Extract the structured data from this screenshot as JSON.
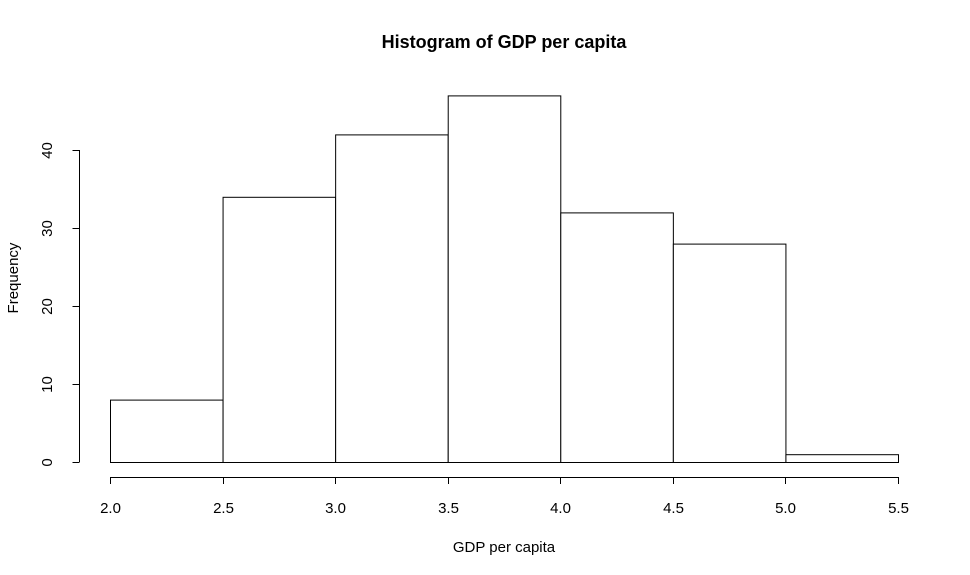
{
  "chart_data": {
    "type": "bar",
    "title": "Histogram of GDP per capita",
    "xlabel": "GDP per capita",
    "ylabel": "Frequency",
    "bin_edges": [
      2.0,
      2.5,
      3.0,
      3.5,
      4.0,
      4.5,
      5.0,
      5.5
    ],
    "values": [
      8,
      34,
      42,
      47,
      32,
      28,
      1
    ],
    "xlim": [
      2.0,
      5.5
    ],
    "ylim": [
      0,
      47
    ],
    "x_ticks": [
      "2.0",
      "2.5",
      "3.0",
      "3.5",
      "4.0",
      "4.5",
      "5.0",
      "5.5"
    ],
    "y_ticks": [
      "0",
      "10",
      "20",
      "30",
      "40"
    ],
    "grid": false,
    "bar_fill": "#ffffff",
    "bar_stroke": "#000000"
  }
}
